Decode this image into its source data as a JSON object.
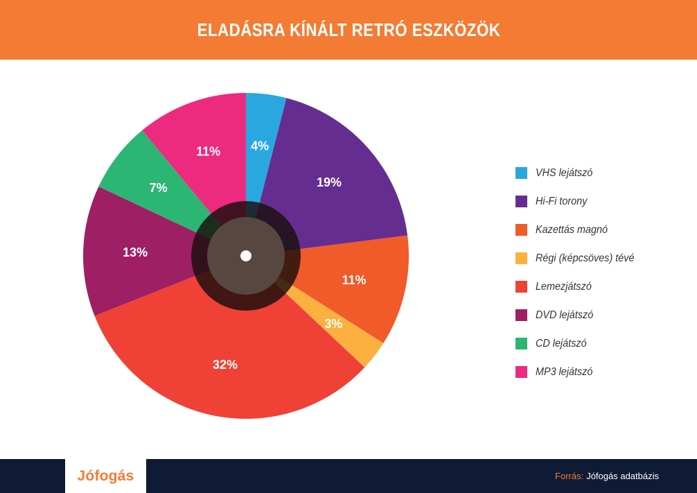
{
  "header": {
    "title": "ELADÁSRA KÍNÁLT RETRÓ ESZKÖZÖK"
  },
  "chart_data": {
    "type": "pie",
    "title": "ELADÁSRA KÍNÁLT RETRÓ ESZKÖZÖK",
    "legend_position": "right",
    "slices": [
      {
        "label": "VHS lejátszó",
        "value": 4,
        "display": "4%",
        "color": "#29a8e0"
      },
      {
        "label": "Hi-Fi torony",
        "value": 19,
        "display": "19%",
        "color": "#662d91"
      },
      {
        "label": "Kazettás magnó",
        "value": 11,
        "display": "11%",
        "color": "#f15a29"
      },
      {
        "label": "Régi (képcsöves) tévé",
        "value": 3,
        "display": "3%",
        "color": "#fbb040"
      },
      {
        "label": "Lemezjátszó",
        "value": 32,
        "display": "32%",
        "color": "#ef4136"
      },
      {
        "label": "DVD lejátszó",
        "value": 13,
        "display": "13%",
        "color": "#9e1f63"
      },
      {
        "label": "CD lejátszó",
        "value": 7,
        "display": "7%",
        "color": "#2bb673"
      },
      {
        "label": "MP3 lejátszó",
        "value": 11,
        "display": "11%",
        "color": "#ec2a7f"
      }
    ]
  },
  "footer": {
    "logo": "Jófogás",
    "source_label": "Forrás:",
    "source_text": "Jófogás adatbázis"
  },
  "colors": {
    "header_bg": "#f47b33",
    "footer_bg": "#0f1b35",
    "record_center": "#574740",
    "record_ring": "#1a0f0c"
  }
}
